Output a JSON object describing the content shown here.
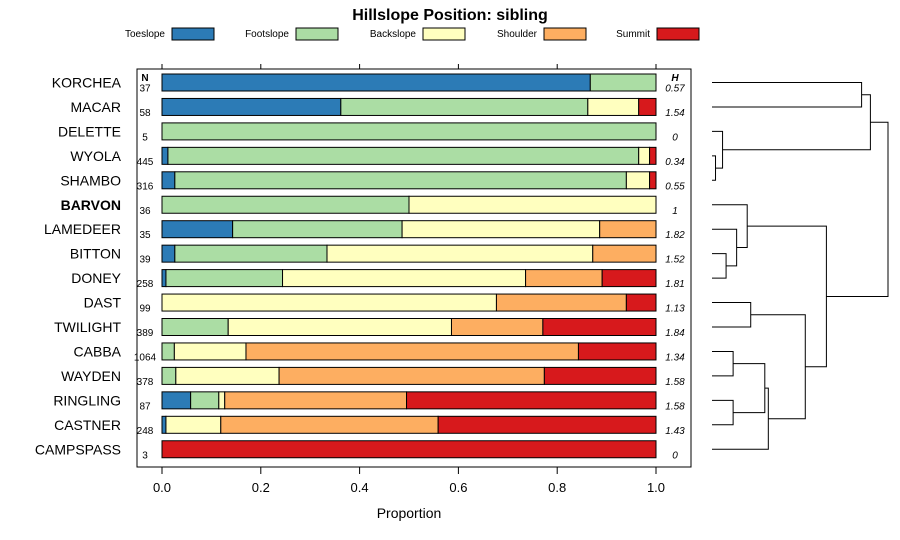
{
  "chart_data": {
    "type": "bar",
    "stacked": true,
    "orientation": "horizontal",
    "title": "Hillslope Position: sibling",
    "xlabel": "Proportion",
    "ylabel": "",
    "xlim": [
      0,
      1
    ],
    "xticks": [
      "0.0",
      "0.2",
      "0.4",
      "0.6",
      "0.8",
      "1.0"
    ],
    "n_header": "N",
    "h_header": "H",
    "highlight": "BARVON",
    "legend": [
      {
        "name": "Toeslope",
        "color": "#2c7bb6"
      },
      {
        "name": "Footslope",
        "color": "#abdda4"
      },
      {
        "name": "Backslope",
        "color": "#ffffbf"
      },
      {
        "name": "Shoulder",
        "color": "#fdae61"
      },
      {
        "name": "Summit",
        "color": "#d7191c"
      }
    ],
    "rows": [
      {
        "name": "KORCHEA",
        "n": "37",
        "h": "0.57",
        "values": [
          0.867,
          0.133,
          0,
          0,
          0
        ]
      },
      {
        "name": "MACAR",
        "n": "58",
        "h": "1.54",
        "values": [
          0.362,
          0.5,
          0.103,
          0,
          0.035
        ]
      },
      {
        "name": "DELETTE",
        "n": "5",
        "h": "0",
        "values": [
          0,
          1,
          0,
          0,
          0
        ]
      },
      {
        "name": "WYOLA",
        "n": "445",
        "h": "0.34",
        "values": [
          0.012,
          0.953,
          0.022,
          0,
          0.013
        ]
      },
      {
        "name": "SHAMBO",
        "n": "316",
        "h": "0.55",
        "values": [
          0.026,
          0.914,
          0.047,
          0,
          0.013
        ]
      },
      {
        "name": "BARVON",
        "n": "36",
        "h": "1",
        "values": [
          0,
          0.5,
          0.5,
          0,
          0
        ]
      },
      {
        "name": "LAMEDEER",
        "n": "35",
        "h": "1.82",
        "values": [
          0.143,
          0.343,
          0.4,
          0.114,
          0
        ]
      },
      {
        "name": "BITTON",
        "n": "39",
        "h": "1.52",
        "values": [
          0.026,
          0.308,
          0.538,
          0.128,
          0
        ]
      },
      {
        "name": "DONEY",
        "n": "258",
        "h": "1.81",
        "values": [
          0.008,
          0.236,
          0.492,
          0.155,
          0.109
        ]
      },
      {
        "name": "DAST",
        "n": "99",
        "h": "1.13",
        "values": [
          0,
          0,
          0.677,
          0.263,
          0.06
        ]
      },
      {
        "name": "TWILIGHT",
        "n": "389",
        "h": "1.84",
        "values": [
          0,
          0.134,
          0.452,
          0.185,
          0.229
        ]
      },
      {
        "name": "CABBA",
        "n": "1064",
        "h": "1.34",
        "values": [
          0,
          0.025,
          0.145,
          0.673,
          0.157
        ]
      },
      {
        "name": "WAYDEN",
        "n": "378",
        "h": "1.58",
        "values": [
          0,
          0.028,
          0.209,
          0.537,
          0.226
        ]
      },
      {
        "name": "RINGLING",
        "n": "87",
        "h": "1.58",
        "values": [
          0.058,
          0.057,
          0.012,
          0.368,
          0.505
        ]
      },
      {
        "name": "CASTNER",
        "n": "248",
        "h": "1.43",
        "values": [
          0.008,
          0,
          0.111,
          0.44,
          0.441
        ]
      },
      {
        "name": "CAMPSPASS",
        "n": "3",
        "h": "0",
        "values": [
          0,
          0,
          0,
          0,
          1
        ]
      }
    ],
    "dendrogram": {
      "leaf_order": [
        "KORCHEA",
        "MACAR",
        "DELETTE",
        "WYOLA",
        "SHAMBO",
        "BARVON",
        "LAMEDEER",
        "BITTON",
        "DONEY",
        "DAST",
        "TWILIGHT",
        "CABBA",
        "WAYDEN",
        "RINGLING",
        "CASTNER",
        "CAMPSPASS"
      ],
      "merges": [
        {
          "a": "L3",
          "b": "L4",
          "height": 0.02
        },
        {
          "a": "L2",
          "b": "M0",
          "height": 0.06
        },
        {
          "a": "L7",
          "b": "L8",
          "height": 0.08
        },
        {
          "a": "L6",
          "b": "M2",
          "height": 0.14
        },
        {
          "a": "L5",
          "b": "M3",
          "height": 0.2
        },
        {
          "a": "L11",
          "b": "L12",
          "height": 0.12
        },
        {
          "a": "L13",
          "b": "L14",
          "height": 0.12
        },
        {
          "a": "M5",
          "b": "M6",
          "height": 0.3
        },
        {
          "a": "L9",
          "b": "L10",
          "height": 0.22
        },
        {
          "a": "M7",
          "b": "L15",
          "height": 0.32
        },
        {
          "a": "M8",
          "b": "M9",
          "height": 0.53
        },
        {
          "a": "M4",
          "b": "M10",
          "height": 0.65
        },
        {
          "a": "L0",
          "b": "L1",
          "height": 0.85
        },
        {
          "a": "M1",
          "b": "M12",
          "height": 0.9
        },
        {
          "a": "M11",
          "b": "M13",
          "height": 1.0
        }
      ]
    }
  }
}
